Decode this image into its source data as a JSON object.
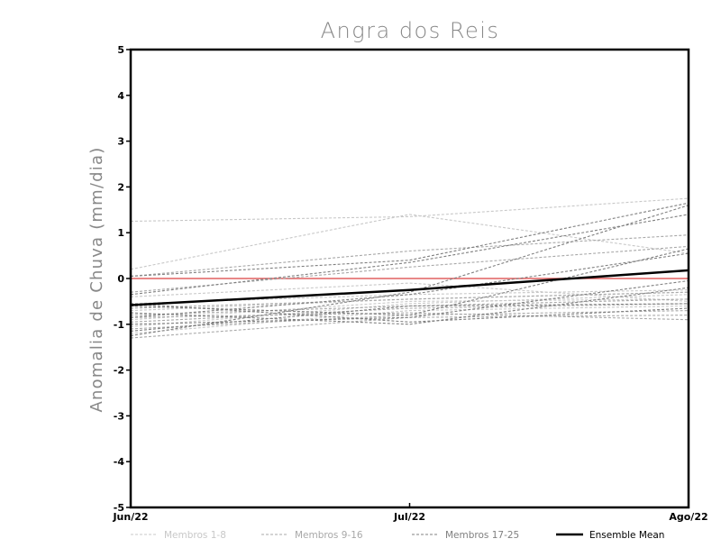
{
  "chart_data": {
    "type": "line",
    "title": "Angra dos Reis",
    "xlabel": "",
    "ylabel": "Anomalia de Chuva (mm/dia)",
    "categories": [
      "Jun/22",
      "Jul/22",
      "Ago/22"
    ],
    "ylim": [
      -5,
      5
    ],
    "yticks": [
      -5,
      -4,
      -3,
      -2,
      -1,
      0,
      1,
      2,
      3,
      4,
      5
    ],
    "reference_line": {
      "value": 0,
      "color": "#e06060"
    },
    "groups": [
      {
        "name": "Membros 1-8",
        "color": "#c8c8c8",
        "dash": "dashed"
      },
      {
        "name": "Membros 9-16",
        "color": "#a8a8a8",
        "dash": "dashed"
      },
      {
        "name": "Membros 17-25",
        "color": "#808080",
        "dash": "dashed"
      },
      {
        "name": "Ensemble Mean",
        "color": "#000000",
        "dash": "solid"
      }
    ],
    "series": [
      {
        "name": "Membro 1",
        "group": 0,
        "values": [
          1.25,
          1.35,
          1.75
        ]
      },
      {
        "name": "Membro 2",
        "group": 0,
        "values": [
          0.2,
          1.4,
          0.55
        ]
      },
      {
        "name": "Membro 3",
        "group": 0,
        "values": [
          -0.4,
          -0.1,
          -0.5
        ]
      },
      {
        "name": "Membro 4",
        "group": 0,
        "values": [
          -0.55,
          -0.35,
          -0.25
        ]
      },
      {
        "name": "Membro 5",
        "group": 0,
        "values": [
          -0.7,
          -0.45,
          -0.3
        ]
      },
      {
        "name": "Membro 6",
        "group": 0,
        "values": [
          -0.9,
          -0.5,
          -0.45
        ]
      },
      {
        "name": "Membro 7",
        "group": 0,
        "values": [
          -1.05,
          -0.55,
          -0.35
        ]
      },
      {
        "name": "Membro 8",
        "group": 0,
        "values": [
          -1.2,
          -0.7,
          -0.6
        ]
      },
      {
        "name": "Membro 9",
        "group": 1,
        "values": [
          0.05,
          0.6,
          0.95
        ]
      },
      {
        "name": "Membro 10",
        "group": 1,
        "values": [
          -0.3,
          0.25,
          0.7
        ]
      },
      {
        "name": "Membro 11",
        "group": 1,
        "values": [
          -0.8,
          -0.6,
          -0.45
        ]
      },
      {
        "name": "Membro 12",
        "group": 1,
        "values": [
          -0.95,
          -0.65,
          -0.55
        ]
      },
      {
        "name": "Membro 13",
        "group": 1,
        "values": [
          -0.85,
          -0.75,
          -0.9
        ]
      },
      {
        "name": "Membro 14",
        "group": 1,
        "values": [
          -0.65,
          -0.45,
          -0.3
        ]
      },
      {
        "name": "Membro 15",
        "group": 1,
        "values": [
          -1.1,
          -0.8,
          -0.7
        ]
      },
      {
        "name": "Membro 16",
        "group": 1,
        "values": [
          -1.3,
          -0.85,
          -0.8
        ]
      },
      {
        "name": "Membro 17",
        "group": 2,
        "values": [
          0.05,
          0.4,
          1.65
        ]
      },
      {
        "name": "Membro 18",
        "group": 2,
        "values": [
          -0.35,
          0.35,
          1.4
        ]
      },
      {
        "name": "Membro 19",
        "group": 2,
        "values": [
          -0.85,
          -0.35,
          0.55
        ]
      },
      {
        "name": "Membro 20",
        "group": 2,
        "values": [
          -1.25,
          -0.3,
          1.6
        ]
      },
      {
        "name": "Membro 21",
        "group": 2,
        "values": [
          -0.55,
          -0.95,
          -0.65
        ]
      },
      {
        "name": "Membro 22",
        "group": 2,
        "values": [
          -0.75,
          -1.0,
          -0.2
        ]
      },
      {
        "name": "Membro 23",
        "group": 2,
        "values": [
          -1.0,
          -0.85,
          -0.05
        ]
      },
      {
        "name": "Membro 24",
        "group": 2,
        "values": [
          -1.15,
          -0.6,
          -0.55
        ]
      },
      {
        "name": "Membro 25",
        "group": 2,
        "values": [
          -0.6,
          -0.8,
          0.65
        ]
      },
      {
        "name": "Ensemble Mean",
        "group": 3,
        "values": [
          -0.58,
          -0.25,
          0.18
        ]
      }
    ],
    "legend": [
      "Membros 1-8",
      "Membros 9-16",
      "Membros 17-25",
      "Ensemble Mean"
    ],
    "legend_position": "bottom"
  }
}
